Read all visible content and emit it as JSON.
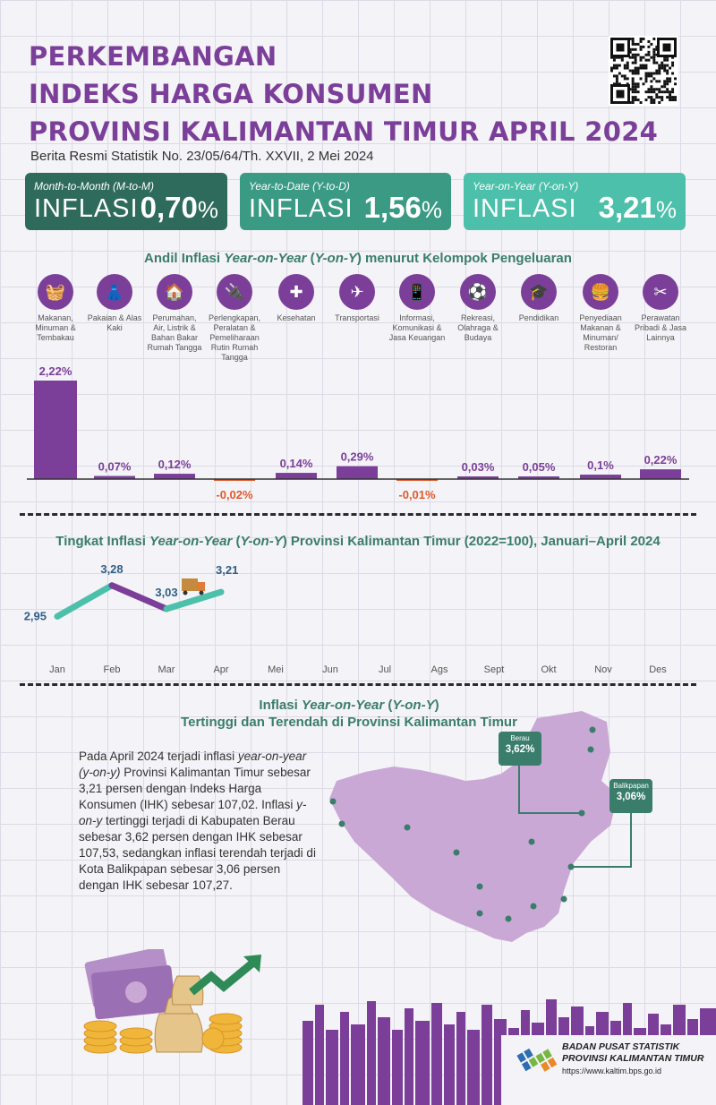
{
  "header": {
    "title_lines": [
      "PERKEMBANGAN",
      "INDEKS HARGA KONSUMEN",
      "PROVINSI KALIMANTAN TIMUR APRIL 2024"
    ],
    "subtitle": "Berita Resmi Statistik No. 23/05/64/Th. XXVII, 2 Mei 2024"
  },
  "cards": [
    {
      "tag": "Month-to-Month (M-to-M)",
      "label": "INFLASI",
      "value": "0,70",
      "unit": "%",
      "color": "#2f6b5c"
    },
    {
      "tag": "Year-to-Date (Y-to-D)",
      "label": "INFLASI",
      "value": "1,56",
      "unit": "%",
      "color": "#3a9a84"
    },
    {
      "tag": "Year-on-Year (Y-on-Y)",
      "label": "INFLASI",
      "value": "3,21",
      "unit": "%",
      "color": "#4cc0aa"
    }
  ],
  "section1": {
    "pre": "Andil Inflasi ",
    "em1": "Year-on-Year",
    "mid": " (",
    "em2": "Y-on-Y",
    "post": ") menurut Kelompok Pengeluaran"
  },
  "categories": [
    {
      "label": "Makanan, Minuman & Tembakau",
      "icon": "food-basket-icon",
      "glyph": "🧺"
    },
    {
      "label": "Pakaian & Alas Kaki",
      "icon": "dress-icon",
      "glyph": "👗"
    },
    {
      "label": "Perumahan, Air, Listrik & Bahan Bakar Rumah Tangga",
      "icon": "house-icon",
      "glyph": "🏠"
    },
    {
      "label": "Perlengkapan, Peralatan & Pemeliharaan Rutin Rumah Tangga",
      "icon": "iron-icon",
      "glyph": "🔌"
    },
    {
      "label": "Kesehatan",
      "icon": "first-aid-icon",
      "glyph": "✚"
    },
    {
      "label": "Transportasi",
      "icon": "airplane-icon",
      "glyph": "✈"
    },
    {
      "label": "Informasi, Komunikasi & Jasa Keuangan",
      "icon": "phone-icon",
      "glyph": "📱"
    },
    {
      "label": "Rekreasi, Olahraga & Budaya",
      "icon": "football-player-icon",
      "glyph": "⚽"
    },
    {
      "label": "Pendidikan",
      "icon": "graduation-cap-icon",
      "glyph": "🎓"
    },
    {
      "label": "Penyediaan Makanan & Minuman/ Restoran",
      "icon": "fast-food-icon",
      "glyph": "🍔"
    },
    {
      "label": "Perawatan Pribadi & Jasa Lainnya",
      "icon": "scissors-comb-icon",
      "glyph": "✂"
    }
  ],
  "section2": {
    "pre": "Tingkat Inflasi ",
    "em1": "Year-on-Year",
    "mid": " (",
    "em2": "Y-on-Y",
    "post": ") Provinsi Kalimantan Timur (2022=100), Januari–April 2024"
  },
  "section3": {
    "line1_pre": "Inflasi ",
    "line1_em1": "Year-on-Year",
    "line1_mid": " (",
    "line1_em2": "Y-on-Y",
    "line1_post": ")",
    "line2": "Tertinggi dan Terendah di Provinsi Kalimantan Timur"
  },
  "paragraph": {
    "p1": "Pada April 2024 terjadi inflasi ",
    "e1": "year-on-year (y-on-y)",
    "p2": " Provinsi Kalimantan Timur sebesar 3,21 persen dengan Indeks Harga Konsumen (IHK) sebesar 107,02. Inflasi ",
    "e2": "y-on-y",
    "p3": " tertinggi terjadi di Kabupaten Berau sebesar 3,62 persen dengan IHK sebesar 107,53, sedangkan inflasi terendah terjadi di Kota Balikpapan sebesar 3,06 persen dengan IHK sebesar 107,27."
  },
  "map": {
    "callouts": [
      {
        "name": "Berau",
        "value": "3,62%"
      },
      {
        "name": "Balikpapan",
        "value": "3,06%"
      }
    ],
    "color": "#c9a8d6"
  },
  "footer": {
    "org_line1": "BADAN PUSAT STATISTIK",
    "org_line2": "PROVINSI KALIMANTAN TIMUR",
    "url": "https://www.kaltim.bps.go.id"
  },
  "chart_data": [
    {
      "type": "bar",
      "categories": [
        "Makanan, Minuman & Tembakau",
        "Pakaian & Alas Kaki",
        "Perumahan, Air, Listrik & Bahan Bakar Rumah Tangga",
        "Perlengkapan, Peralatan & Pemeliharaan Rutin Rumah Tangga",
        "Kesehatan",
        "Transportasi",
        "Informasi, Komunikasi & Jasa Keuangan",
        "Rekreasi, Olahraga & Budaya",
        "Pendidikan",
        "Penyediaan Makanan & Minuman/ Restoran",
        "Perawatan Pribadi & Jasa Lainnya"
      ],
      "values": [
        2.22,
        0.07,
        0.12,
        -0.02,
        0.14,
        0.29,
        -0.01,
        0.03,
        0.05,
        0.1,
        0.22
      ],
      "labels": [
        "2,22%",
        "0,07%",
        "0,12%",
        "-0,02%",
        "0,14%",
        "0,29%",
        "-0,01%",
        "0,03%",
        "0,05%",
        "0,1%",
        "0,22%"
      ],
      "colors": {
        "positive": "#7b3f99",
        "negative": "#e05a2b"
      }
    },
    {
      "type": "line",
      "x": [
        "Jan",
        "Feb",
        "Mar",
        "Apr",
        "Mei",
        "Jun",
        "Jul",
        "Ags",
        "Sept",
        "Okt",
        "Nov",
        "Des"
      ],
      "series": [
        {
          "values": [
            2.95,
            3.28,
            3.03,
            3.21
          ]
        }
      ],
      "labels": [
        "2,95",
        "3,28",
        "3,03",
        "3,21"
      ],
      "colors": {
        "rise": "#7b3f99",
        "fall": "#4cc0aa"
      }
    }
  ]
}
